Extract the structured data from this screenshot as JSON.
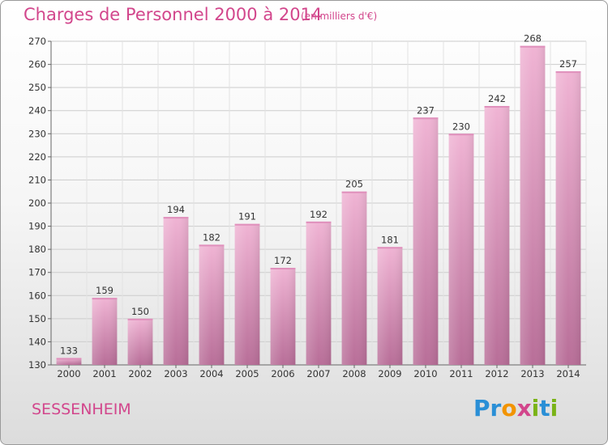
{
  "title": "Charges de Personnel 2000 à 2014",
  "unit_note": "(en milliers d'€)",
  "city": "SESSENHEIM",
  "logo": {
    "text": "Proxiti",
    "letters": [
      {
        "char": "P",
        "color": "#2a8fd6"
      },
      {
        "char": "r",
        "color": "#2a8fd6"
      },
      {
        "char": "o",
        "color": "#f29400"
      },
      {
        "char": "x",
        "color": "#d2468c"
      },
      {
        "char": "i",
        "color": "#7ab317"
      },
      {
        "char": "t",
        "color": "#2a8fd6"
      },
      {
        "char": "i",
        "color": "#7ab317"
      }
    ]
  },
  "colors": {
    "bar_light": "#f0b4d4",
    "bar_dark": "#b86e98",
    "accent": "#d2468c",
    "grid": "#cccccc"
  },
  "chart_data": {
    "type": "bar",
    "categories": [
      "2000",
      "2001",
      "2002",
      "2003",
      "2004",
      "2005",
      "2006",
      "2007",
      "2008",
      "2009",
      "2010",
      "2011",
      "2012",
      "2013",
      "2014"
    ],
    "values": [
      133,
      159,
      150,
      194,
      182,
      191,
      172,
      192,
      205,
      181,
      237,
      230,
      242,
      268,
      257
    ],
    "title": "Charges de Personnel 2000 à 2014",
    "subtitle": "(en milliers d'€)",
    "xlabel": "",
    "ylabel": "",
    "ylim": [
      130,
      270
    ],
    "yticks": [
      130,
      140,
      150,
      160,
      170,
      180,
      190,
      200,
      210,
      220,
      230,
      240,
      250,
      260,
      270
    ],
    "grid": true,
    "legend": "none"
  }
}
